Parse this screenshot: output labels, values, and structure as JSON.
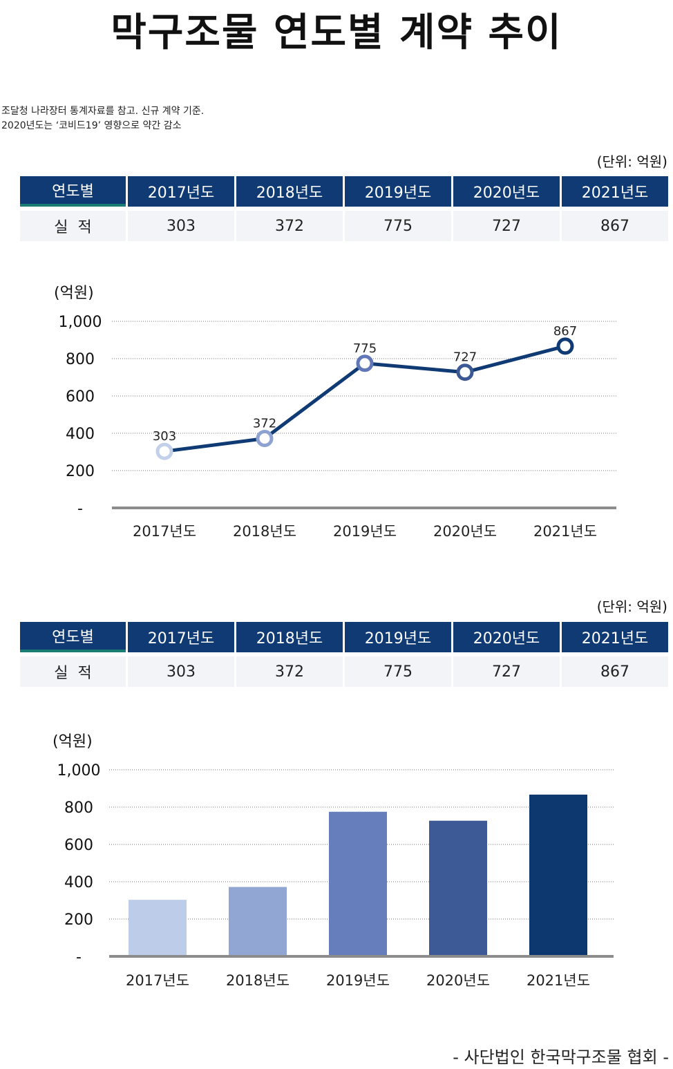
{
  "title": "막구조물 연도별 계약 추이",
  "notes": [
    "조달청 나라장터 통계자료를 참고. 신규 계약 기준.",
    "2020년도는 ‘코비드19’ 영향으로 약간 감소"
  ],
  "unit_label": "(단위: 억원)",
  "table": {
    "header": [
      "연도별",
      "2017년도",
      "2018년도",
      "2019년도",
      "2020년도",
      "2021년도"
    ],
    "row_label": "실  적",
    "values": [
      "303",
      "372",
      "775",
      "727",
      "867"
    ]
  },
  "footer": "- 사단법인 한국막구조물 협회 -",
  "chart_data": [
    {
      "type": "line",
      "ylabel": "(억원)",
      "categories": [
        "2017년도",
        "2018년도",
        "2019년도",
        "2020년도",
        "2021년도"
      ],
      "values": [
        303,
        372,
        775,
        727,
        867
      ],
      "data_labels": [
        "303",
        "372",
        "775",
        "727",
        "867"
      ],
      "yticks": [
        "-",
        "200",
        "400",
        "600",
        "800",
        "1,000"
      ],
      "ylim": [
        0,
        1000
      ],
      "grid": true,
      "line_color": "#0f3a73",
      "marker_colors": [
        "#c3d0ea",
        "#8ea2d2",
        "#6177b8",
        "#3c5894",
        "#0f3a73"
      ]
    },
    {
      "type": "bar",
      "ylabel": "(억원)",
      "categories": [
        "2017년도",
        "2018년도",
        "2019년도",
        "2020년도",
        "2021년도"
      ],
      "values": [
        303,
        372,
        775,
        727,
        867
      ],
      "yticks": [
        "-",
        "200",
        "400",
        "600",
        "800",
        "1,000"
      ],
      "ylim": [
        0,
        1000
      ],
      "grid": true,
      "bar_colors": [
        "#bccce9",
        "#92a6d3",
        "#667fbc",
        "#3d5a96",
        "#0c376f"
      ]
    }
  ]
}
